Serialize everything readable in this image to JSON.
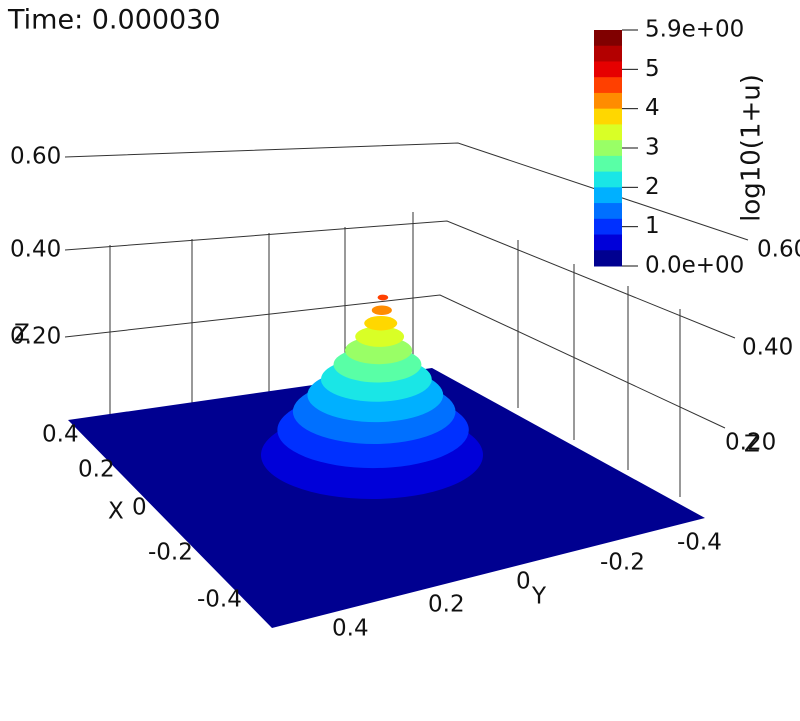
{
  "time_label": "Time: 0.000030",
  "colorbar": {
    "title": "log10(1+u)",
    "labels": [
      "5.9e+00",
      "5",
      "4",
      "3",
      "2",
      "1",
      "0.0e+00"
    ],
    "colors": [
      "#800000",
      "#b30000",
      "#e60000",
      "#ff4000",
      "#ff8c00",
      "#ffd700",
      "#d9ff26",
      "#99ff66",
      "#59ffa6",
      "#1ae6e6",
      "#00b0ff",
      "#0070ff",
      "#0030ff",
      "#0000d9",
      "#000090"
    ]
  },
  "axes": {
    "z_left": {
      "name": "Z",
      "ticks": [
        "0.60",
        "0.40",
        "0.20"
      ]
    },
    "z_right": {
      "name": "Z",
      "ticks": [
        "0.60",
        "0.40",
        "0.20"
      ]
    },
    "x": {
      "name": "X",
      "ticks": [
        "0.4",
        "0.2",
        "0",
        "-0.2",
        "-0.4"
      ]
    },
    "y": {
      "name": "Y",
      "ticks": [
        "-0.4",
        "-0.2",
        "0",
        "0.2",
        "0.4"
      ]
    }
  }
}
